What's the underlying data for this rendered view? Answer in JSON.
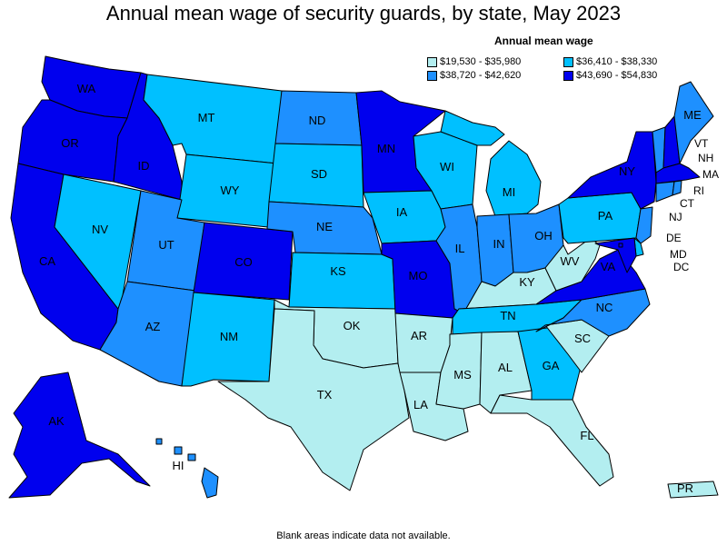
{
  "title": "Annual mean wage of security guards, by state, May 2023",
  "legend": {
    "title": "Annual mean wage",
    "items": [
      {
        "label": "$19,530 - $35,980",
        "color": "#b3eef0"
      },
      {
        "label": "$36,410 - $38,330",
        "color": "#00c0ff"
      },
      {
        "label": "$38,720 - $42,620",
        "color": "#1e90ff"
      },
      {
        "label": "$43,690 - $54,830",
        "color": "#0000ee"
      }
    ]
  },
  "note": "Blank areas indicate data not available.",
  "states": {
    "WA": "#0000ee",
    "OR": "#0000ee",
    "CA": "#0000ee",
    "ID": "#0000ee",
    "NV": "#00c0ff",
    "MT": "#00c0ff",
    "WY": "#00c0ff",
    "UT": "#1e90ff",
    "AZ": "#1e90ff",
    "CO": "#0000ee",
    "NM": "#00c0ff",
    "ND": "#1e90ff",
    "SD": "#00c0ff",
    "NE": "#1e90ff",
    "KS": "#00c0ff",
    "OK": "#b3eef0",
    "TX": "#b3eef0",
    "MN": "#0000ee",
    "IA": "#00c0ff",
    "MO": "#0000ee",
    "AR": "#b3eef0",
    "LA": "#b3eef0",
    "WI": "#00c0ff",
    "IL": "#1e90ff",
    "MI": "#00c0ff",
    "IN": "#1e90ff",
    "OH": "#1e90ff",
    "KY": "#b3eef0",
    "TN": "#00c0ff",
    "MS": "#b3eef0",
    "AL": "#b3eef0",
    "GA": "#00c0ff",
    "FL": "#b3eef0",
    "SC": "#b3eef0",
    "NC": "#1e90ff",
    "VA": "#0000ee",
    "WV": "#b3eef0",
    "PA": "#00c0ff",
    "NY": "#0000ee",
    "ME": "#1e90ff",
    "VT": "#1e90ff",
    "NH": "#0000ee",
    "MA": "#0000ee",
    "RI": "#1e90ff",
    "CT": "#1e90ff",
    "NJ": "#1e90ff",
    "DE": "#00c0ff",
    "MD": "#0000ee",
    "DC": "#0000ee",
    "AK": "#0000ee",
    "HI": "#1e90ff",
    "PR": "#b3eef0"
  }
}
